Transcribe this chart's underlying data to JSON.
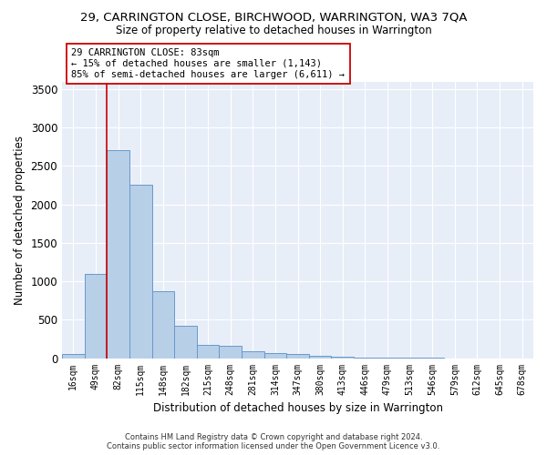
{
  "title": "29, CARRINGTON CLOSE, BIRCHWOOD, WARRINGTON, WA3 7QA",
  "subtitle": "Size of property relative to detached houses in Warrington",
  "xlabel": "Distribution of detached houses by size in Warrington",
  "ylabel": "Number of detached properties",
  "bar_color": "#b8cfe8",
  "bar_edge_color": "#6699cc",
  "background_color": "#e8eef8",
  "grid_color": "#ffffff",
  "categories": [
    "16sqm",
    "49sqm",
    "82sqm",
    "115sqm",
    "148sqm",
    "182sqm",
    "215sqm",
    "248sqm",
    "281sqm",
    "314sqm",
    "347sqm",
    "380sqm",
    "413sqm",
    "446sqm",
    "479sqm",
    "513sqm",
    "546sqm",
    "579sqm",
    "612sqm",
    "645sqm",
    "678sqm"
  ],
  "values": [
    50,
    1100,
    2710,
    2260,
    870,
    420,
    175,
    165,
    95,
    60,
    50,
    35,
    20,
    10,
    5,
    2,
    1,
    0,
    0,
    0,
    0
  ],
  "ylim": [
    0,
    3600
  ],
  "yticks": [
    0,
    500,
    1000,
    1500,
    2000,
    2500,
    3000,
    3500
  ],
  "vline_color": "#cc0000",
  "annotation_text": "29 CARRINGTON CLOSE: 83sqm\n← 15% of detached houses are smaller (1,143)\n85% of semi-detached houses are larger (6,611) →",
  "annotation_box_color": "#ffffff",
  "annotation_box_edge": "#cc0000",
  "footer_line1": "Contains HM Land Registry data © Crown copyright and database right 2024.",
  "footer_line2": "Contains public sector information licensed under the Open Government Licence v3.0.",
  "fig_width": 6.0,
  "fig_height": 5.0,
  "dpi": 100
}
